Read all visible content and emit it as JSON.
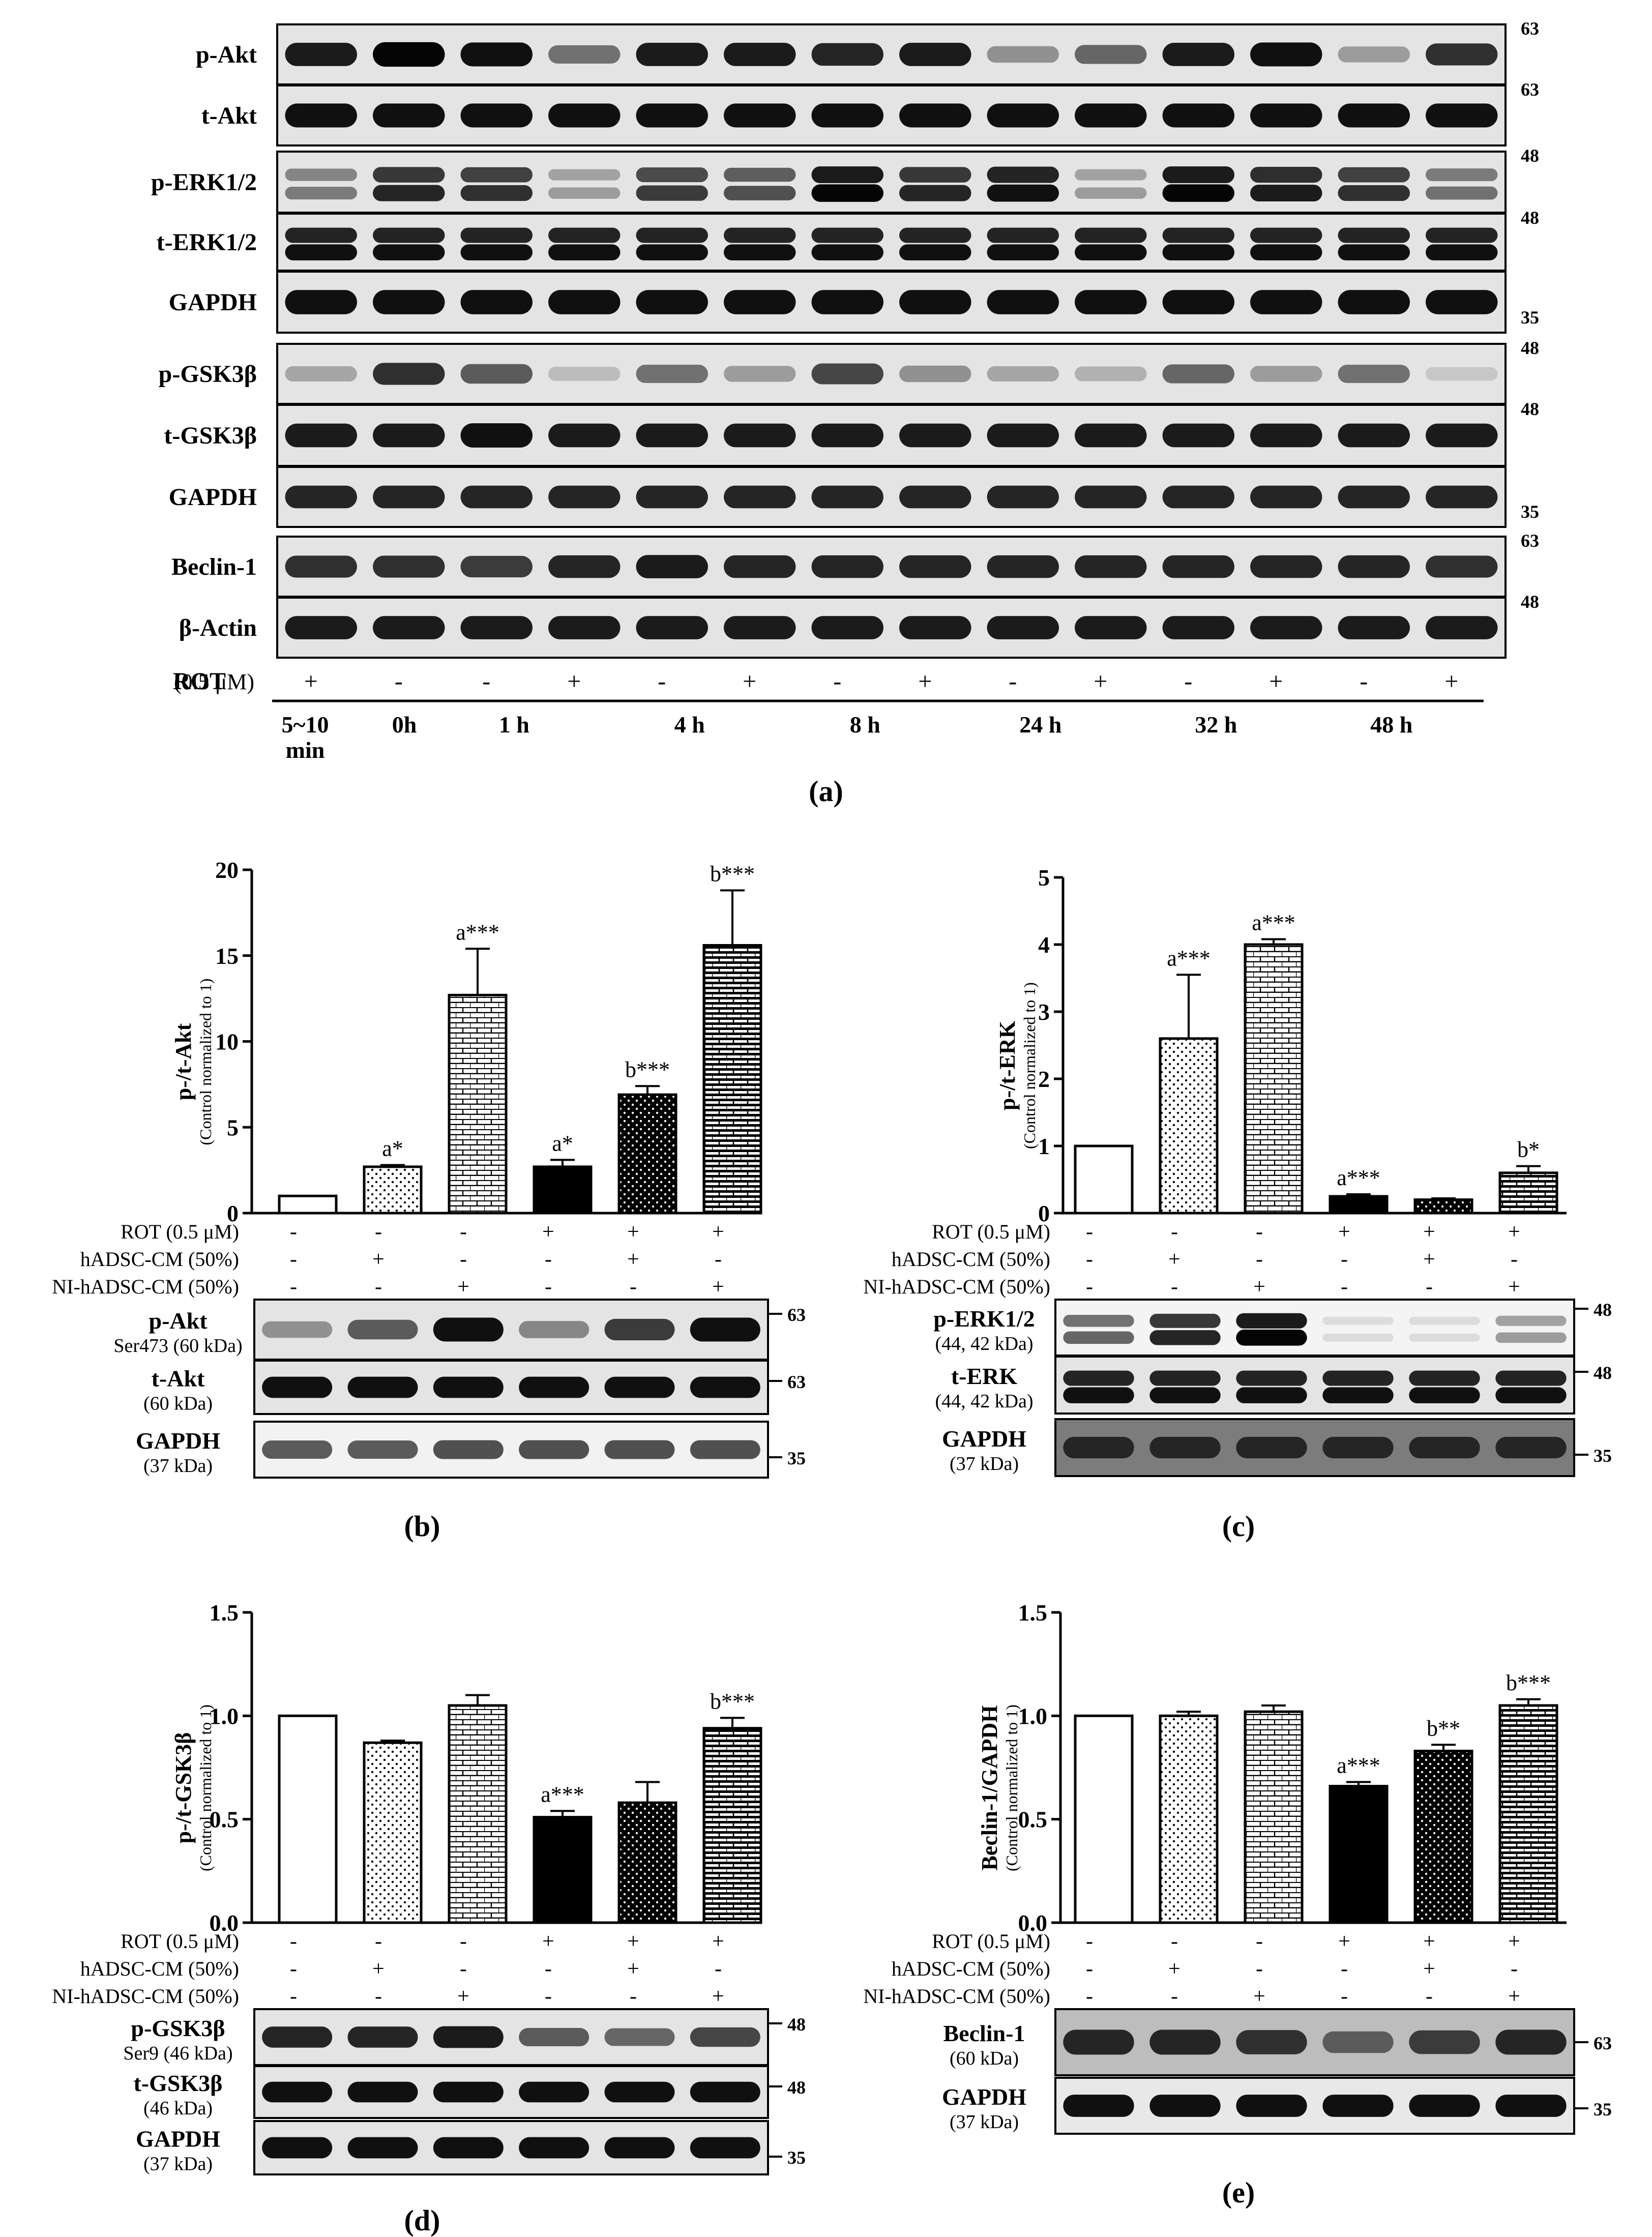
{
  "panel_a": {
    "caption": "a",
    "treatment_label": "ROT",
    "treatment_conc": "(0.5 μM)",
    "rot_signs": [
      "+",
      "-",
      "-",
      "+",
      "-",
      "+",
      "-",
      "+",
      "-",
      "+",
      "-",
      "+",
      "-",
      "+"
    ],
    "time_groups": [
      {
        "label_line1": "5~10",
        "label_line2": "min"
      },
      {
        "label_line1": "0h"
      },
      {
        "label_line1": "1 h"
      },
      {
        "label_line1": "4 h"
      },
      {
        "label_line1": "8 h"
      },
      {
        "label_line1": "24 h"
      },
      {
        "label_line1": "32 h"
      },
      {
        "label_line1": "48 h"
      }
    ],
    "blots": [
      {
        "name": "p-Akt",
        "marker": "63"
      },
      {
        "name": "t-Akt",
        "marker": "63"
      },
      {
        "name": "p-ERK1/2",
        "marker": "48"
      },
      {
        "name": "t-ERK1/2",
        "marker": "48"
      },
      {
        "name": "GAPDH",
        "marker": "35"
      },
      {
        "name": "p-GSK3β",
        "marker": "48"
      },
      {
        "name": "t-GSK3β",
        "marker": "48"
      },
      {
        "name": "GAPDH",
        "marker": "35"
      },
      {
        "name": "Beclin-1",
        "marker": "63"
      },
      {
        "name": "β-Actin",
        "marker": "48"
      }
    ]
  },
  "condition_rows": [
    {
      "label": "ROT (0.5 μM)",
      "signs": [
        "-",
        "-",
        "-",
        "+",
        "+",
        "+"
      ]
    },
    {
      "label": "hADSC-CM (50%)",
      "signs": [
        "-",
        "+",
        "-",
        "-",
        "+",
        "-"
      ]
    },
    {
      "label": "NI-hADSC-CM (50%)",
      "signs": [
        "-",
        "-",
        "+",
        "-",
        "-",
        "+"
      ]
    }
  ],
  "chart_data": [
    {
      "panel": "b",
      "type": "bar",
      "ylabel": "p-/t-Akt",
      "ylabel_sub": "(Control normalized to 1)",
      "ylim": [
        0,
        20
      ],
      "yticks": [
        "0",
        "5",
        "10",
        "15",
        "20"
      ],
      "values": [
        1.0,
        2.7,
        12.7,
        2.7,
        6.9,
        15.6
      ],
      "errors": [
        0,
        0.1,
        2.7,
        0.4,
        0.5,
        3.2
      ],
      "significance": [
        "",
        "a*",
        "a***",
        "a*",
        "b***",
        "b***"
      ],
      "blots": [
        {
          "name": "p-Akt",
          "sub": "Ser473 (60 kDa)",
          "marker": "63"
        },
        {
          "name": "t-Akt",
          "sub": "(60 kDa)",
          "marker": "63"
        },
        {
          "name": "GAPDH",
          "sub": "(37 kDa)",
          "marker": "35"
        }
      ]
    },
    {
      "panel": "c",
      "type": "bar",
      "ylabel": "p-/t-ERK",
      "ylabel_sub": "(Control normalized to 1)",
      "ylim": [
        0,
        5
      ],
      "yticks": [
        "0",
        "1",
        "2",
        "3",
        "4",
        "5"
      ],
      "values": [
        1.0,
        2.6,
        4.0,
        0.25,
        0.2,
        0.6
      ],
      "errors": [
        0,
        0.95,
        0.08,
        0.03,
        0.02,
        0.1
      ],
      "significance": [
        "",
        "a***",
        "a***",
        "a***",
        "",
        "b*"
      ],
      "blots": [
        {
          "name": "p-ERK1/2",
          "sub": "(44, 42 kDa)",
          "marker": "48"
        },
        {
          "name": "t-ERK",
          "sub": "(44, 42 kDa)",
          "marker": "48"
        },
        {
          "name": "GAPDH",
          "sub": "(37 kDa)",
          "marker": "35"
        }
      ]
    },
    {
      "panel": "d",
      "type": "bar",
      "ylabel": "p-/t-GSK3β",
      "ylabel_sub": "(Control normalized to 1)",
      "ylim": [
        0,
        1.5
      ],
      "yticks": [
        "0.0",
        "0.5",
        "1.0",
        "1.5"
      ],
      "values": [
        1.0,
        0.87,
        1.05,
        0.51,
        0.58,
        0.94
      ],
      "errors": [
        0,
        0.01,
        0.05,
        0.03,
        0.1,
        0.05
      ],
      "significance": [
        "",
        "",
        "",
        "a***",
        "",
        "b***"
      ],
      "blots": [
        {
          "name": "p-GSK3β",
          "sub": "Ser9 (46 kDa)",
          "marker": "48"
        },
        {
          "name": "t-GSK3β",
          "sub": "(46 kDa)",
          "marker": "48"
        },
        {
          "name": "GAPDH",
          "sub": "(37 kDa)",
          "marker": "35"
        }
      ]
    },
    {
      "panel": "e",
      "type": "bar",
      "ylabel": "Beclin-1/GAPDH",
      "ylabel_sub": "(Control normalized to 1)",
      "ylim": [
        0,
        1.5
      ],
      "yticks": [
        "0.0",
        "0.5",
        "1.0",
        "1.5"
      ],
      "values": [
        1.0,
        1.0,
        1.02,
        0.66,
        0.83,
        1.05
      ],
      "errors": [
        0,
        0.02,
        0.03,
        0.02,
        0.03,
        0.03
      ],
      "significance": [
        "",
        "",
        "",
        "a***",
        "b**",
        "b***"
      ],
      "blots": [
        {
          "name": "Beclin-1",
          "sub": "(60 kDa)",
          "marker": "63"
        },
        {
          "name": "GAPDH",
          "sub": "(37 kDa)",
          "marker": "35"
        }
      ]
    }
  ]
}
